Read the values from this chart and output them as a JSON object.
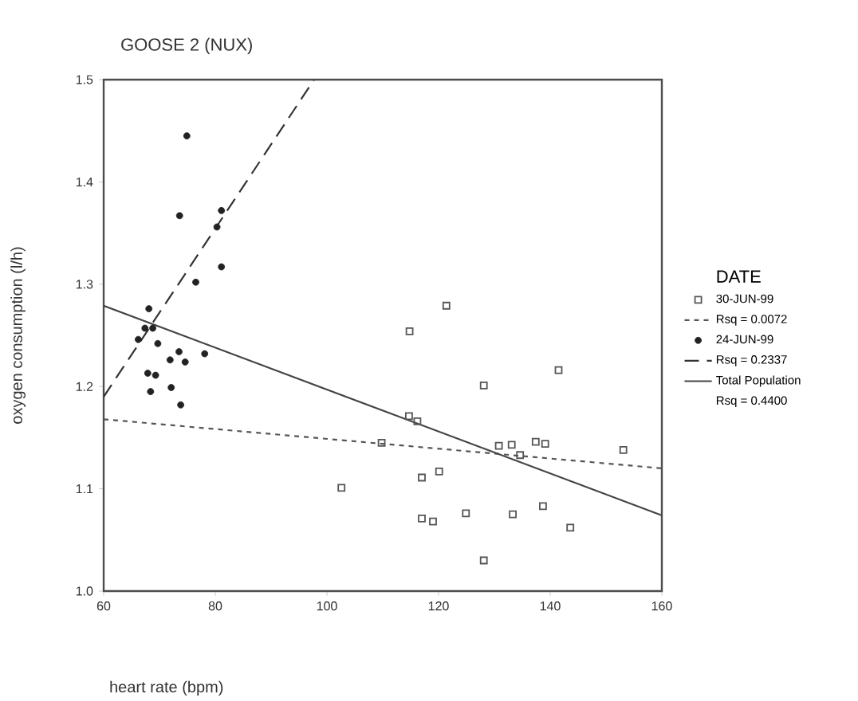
{
  "chart_data": {
    "type": "scatter",
    "title": "GOOSE 2 (NUX)",
    "xlabel": "heart rate (bpm)",
    "ylabel": "oxygen consumption (l/h)",
    "legend_title": "DATE",
    "legend": "right",
    "xlim": [
      60,
      160
    ],
    "xticks": [
      60,
      80,
      100,
      120,
      140,
      160
    ],
    "ylim": [
      1.0,
      1.5
    ],
    "yticks": [
      {
        "value": 1.0,
        "label": "1.0"
      },
      1.1,
      1.2,
      1.3,
      1.4,
      1.5
    ],
    "series": [
      {
        "name": "30-JUN-99",
        "marker": "square",
        "color": "#555555",
        "x": [
          121.4,
          114.8,
          141.5,
          128.1,
          114.7,
          116.2,
          109.8,
          130.8,
          133.1,
          137.4,
          139.1,
          153.1,
          134.6,
          102.6,
          117.0,
          120.1,
          117.0,
          119.0,
          124.9,
          133.3,
          138.7,
          143.6,
          128.1
        ],
        "values": [
          1.279,
          1.254,
          1.216,
          1.201,
          1.171,
          1.166,
          1.145,
          1.142,
          1.143,
          1.146,
          1.144,
          1.138,
          1.133,
          1.101,
          1.111,
          1.117,
          1.071,
          1.068,
          1.076,
          1.075,
          1.083,
          1.062,
          1.03
        ]
      },
      {
        "name": "Rsq = 0.0072",
        "type": "line",
        "marker": "none",
        "line_style": "dotted",
        "color": "#555555",
        "x": [
          60,
          160
        ],
        "values": [
          1.168,
          1.12
        ]
      },
      {
        "name": "24-JUN-99",
        "marker": "circle",
        "color": "#222222",
        "x": [
          74.9,
          73.6,
          81.1,
          80.3,
          81.1,
          76.5,
          68.1,
          68.8,
          66.2,
          69.7,
          71.9,
          74.6,
          73.5,
          78.1,
          67.9,
          69.3,
          68.4,
          72.1,
          73.8,
          67.4
        ],
        "values": [
          1.445,
          1.367,
          1.372,
          1.356,
          1.317,
          1.302,
          1.276,
          1.257,
          1.246,
          1.242,
          1.226,
          1.224,
          1.234,
          1.232,
          1.213,
          1.211,
          1.195,
          1.199,
          1.182,
          1.257
        ]
      },
      {
        "name": "Rsq = 0.2337",
        "type": "line",
        "marker": "none",
        "line_style": "dashed",
        "color": "#333333",
        "x": [
          60,
          97.7
        ],
        "values": [
          1.19,
          1.5
        ]
      },
      {
        "name": "Total Population",
        "type": "line",
        "marker": "none",
        "line_style": "solid",
        "color": "#444444",
        "x": [
          60,
          160
        ],
        "values": [
          1.279,
          1.074
        ]
      }
    ],
    "annotations": [
      "Rsq = 0.4400"
    ]
  }
}
